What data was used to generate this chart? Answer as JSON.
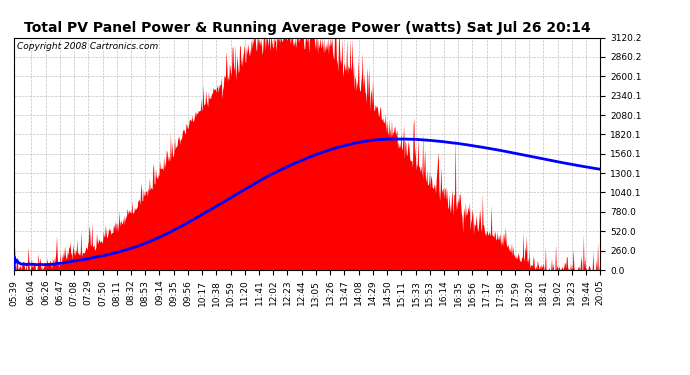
{
  "title": "Total PV Panel Power & Running Average Power (watts) Sat Jul 26 20:14",
  "copyright": "Copyright 2008 Cartronics.com",
  "yticks": [
    0.0,
    260.0,
    520.0,
    780.0,
    1040.1,
    1300.1,
    1560.1,
    1820.1,
    2080.1,
    2340.1,
    2600.1,
    2860.2,
    3120.2
  ],
  "ymax": 3120.2,
  "ymin": 0.0,
  "bg_color": "#ffffff",
  "plot_bg_color": "#ffffff",
  "grid_color": "#bbbbbb",
  "fill_color": "#ff0000",
  "avg_line_color": "#0000ff",
  "xtick_labels": [
    "05:39",
    "06:04",
    "06:26",
    "06:47",
    "07:08",
    "07:29",
    "07:50",
    "08:11",
    "08:32",
    "08:53",
    "09:14",
    "09:35",
    "09:56",
    "10:17",
    "10:38",
    "10:59",
    "11:20",
    "11:41",
    "12:02",
    "12:23",
    "12:44",
    "13:05",
    "13:26",
    "13:47",
    "14:08",
    "14:29",
    "14:50",
    "15:11",
    "15:33",
    "15:53",
    "16:14",
    "16:35",
    "16:56",
    "17:17",
    "17:38",
    "17:59",
    "18:20",
    "18:41",
    "19:02",
    "19:23",
    "19:44",
    "20:05"
  ],
  "title_fontsize": 10,
  "copyright_fontsize": 6.5,
  "tick_fontsize": 6.5,
  "avg_linewidth": 2.0
}
